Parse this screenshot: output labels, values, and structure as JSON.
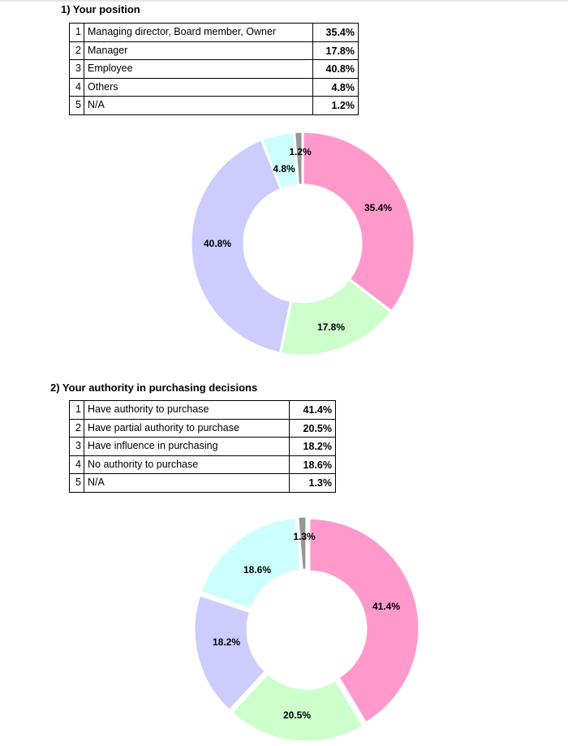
{
  "chart_data": [
    {
      "type": "pie",
      "donut": true,
      "title": "1) Your position",
      "categories": [
        "Managing director, Board member, Owner",
        "Manager",
        "Employee",
        "Others",
        "N/A"
      ],
      "values": [
        35.4,
        17.8,
        40.8,
        4.8,
        1.2
      ],
      "labels": [
        "35.4%",
        "17.8%",
        "40.8%",
        "4.8%",
        "1.2%"
      ],
      "colors": [
        "#ff99cc",
        "#ccffcc",
        "#ccccff",
        "#ccffff",
        "#969696"
      ]
    },
    {
      "type": "pie",
      "donut": true,
      "title": "2) Your authority in purchasing decisions",
      "categories": [
        "Have authority to purchase",
        "Have partial authority to purchase",
        "Have influence in purchasing",
        "No authority to purchase",
        "N/A"
      ],
      "values": [
        41.4,
        20.5,
        18.2,
        18.6,
        1.3
      ],
      "labels": [
        "41.4%",
        "20.5%",
        "18.2%",
        "18.6%",
        "1.3%"
      ],
      "colors": [
        "#ff99cc",
        "#ccffcc",
        "#ccccff",
        "#ccffff",
        "#969696"
      ]
    }
  ]
}
